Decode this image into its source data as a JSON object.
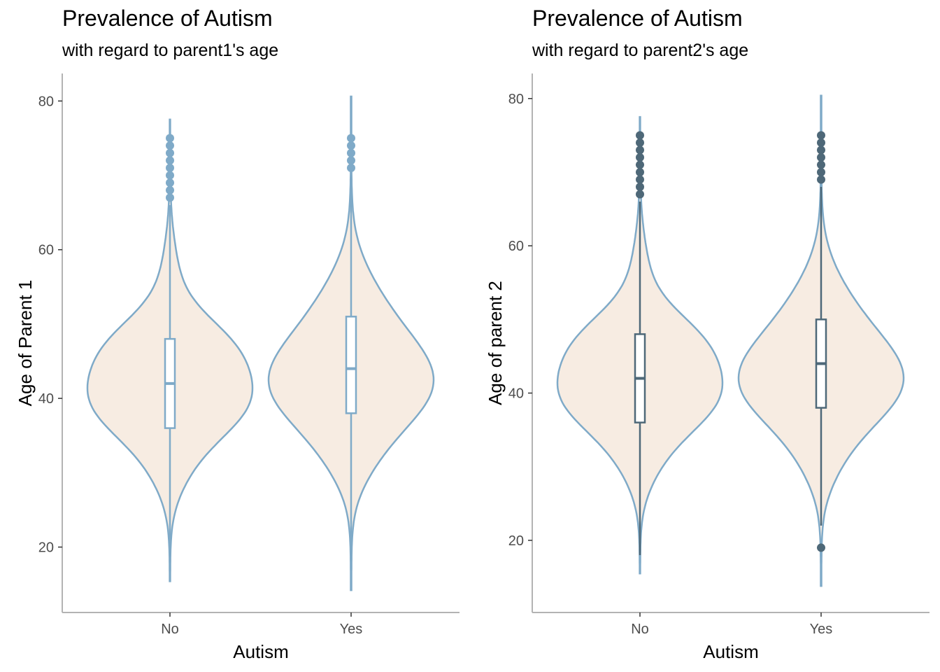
{
  "chart_data": [
    {
      "type": "violin",
      "title": "Prevalence of Autism",
      "subtitle": "with regard to parent1's age",
      "xlabel": "Autism",
      "ylabel": "Age of Parent 1",
      "categories": [
        "No",
        "Yes"
      ],
      "yticks": [
        20,
        40,
        60,
        80
      ],
      "ylim": [
        11.2,
        83.7
      ],
      "grid": false,
      "colors": {
        "violin_fill": "#f7ece2",
        "violin_outline": "#7faac8",
        "box_line": "#7faac8",
        "box_fill": "#ffffff",
        "outlier": "#7faac8"
      },
      "boxes": [
        {
          "category": "No",
          "q1": 36,
          "median": 42,
          "q3": 48,
          "whisker_low": 17,
          "whisker_high": 66
        },
        {
          "category": "Yes",
          "q1": 38,
          "median": 44,
          "q3": 51,
          "whisker_low": 15,
          "whisker_high": 70
        }
      ],
      "outliers": [
        {
          "category": "No",
          "values": [
            67,
            68,
            69,
            70,
            71,
            72,
            73,
            74,
            75
          ]
        },
        {
          "category": "Yes",
          "values": [
            71,
            72,
            73,
            74,
            75
          ]
        }
      ],
      "density_range": [
        {
          "category": "No",
          "min": 15.4,
          "max": 77.5
        },
        {
          "category": "Yes",
          "min": 14.2,
          "max": 80.6
        }
      ]
    },
    {
      "type": "violin",
      "title": "Prevalence of Autism",
      "subtitle": "with regard to parent2's age",
      "xlabel": "Autism",
      "ylabel": "Age of parent 2",
      "categories": [
        "No",
        "Yes"
      ],
      "yticks": [
        20,
        40,
        60,
        80
      ],
      "ylim": [
        10.2,
        83.4
      ],
      "grid": false,
      "colors": {
        "violin_fill": "#f7ece2",
        "violin_outline": "#7faac8",
        "box_line": "#4e6878",
        "box_fill": "#ffffff",
        "outlier": "#4e6878"
      },
      "boxes": [
        {
          "category": "No",
          "q1": 36,
          "median": 42,
          "q3": 48,
          "whisker_low": 18,
          "whisker_high": 66
        },
        {
          "category": "Yes",
          "q1": 38,
          "median": 44,
          "q3": 50,
          "whisker_low": 22,
          "whisker_high": 68
        }
      ],
      "outliers": [
        {
          "category": "No",
          "values": [
            67,
            68,
            69,
            70,
            71,
            72,
            73,
            74,
            75
          ]
        },
        {
          "category": "Yes",
          "values": [
            19,
            69,
            70,
            71,
            72,
            73,
            74,
            75
          ]
        }
      ],
      "density_range": [
        {
          "category": "No",
          "min": 15.5,
          "max": 77.5
        },
        {
          "category": "Yes",
          "min": 13.8,
          "max": 80.4
        }
      ]
    }
  ]
}
